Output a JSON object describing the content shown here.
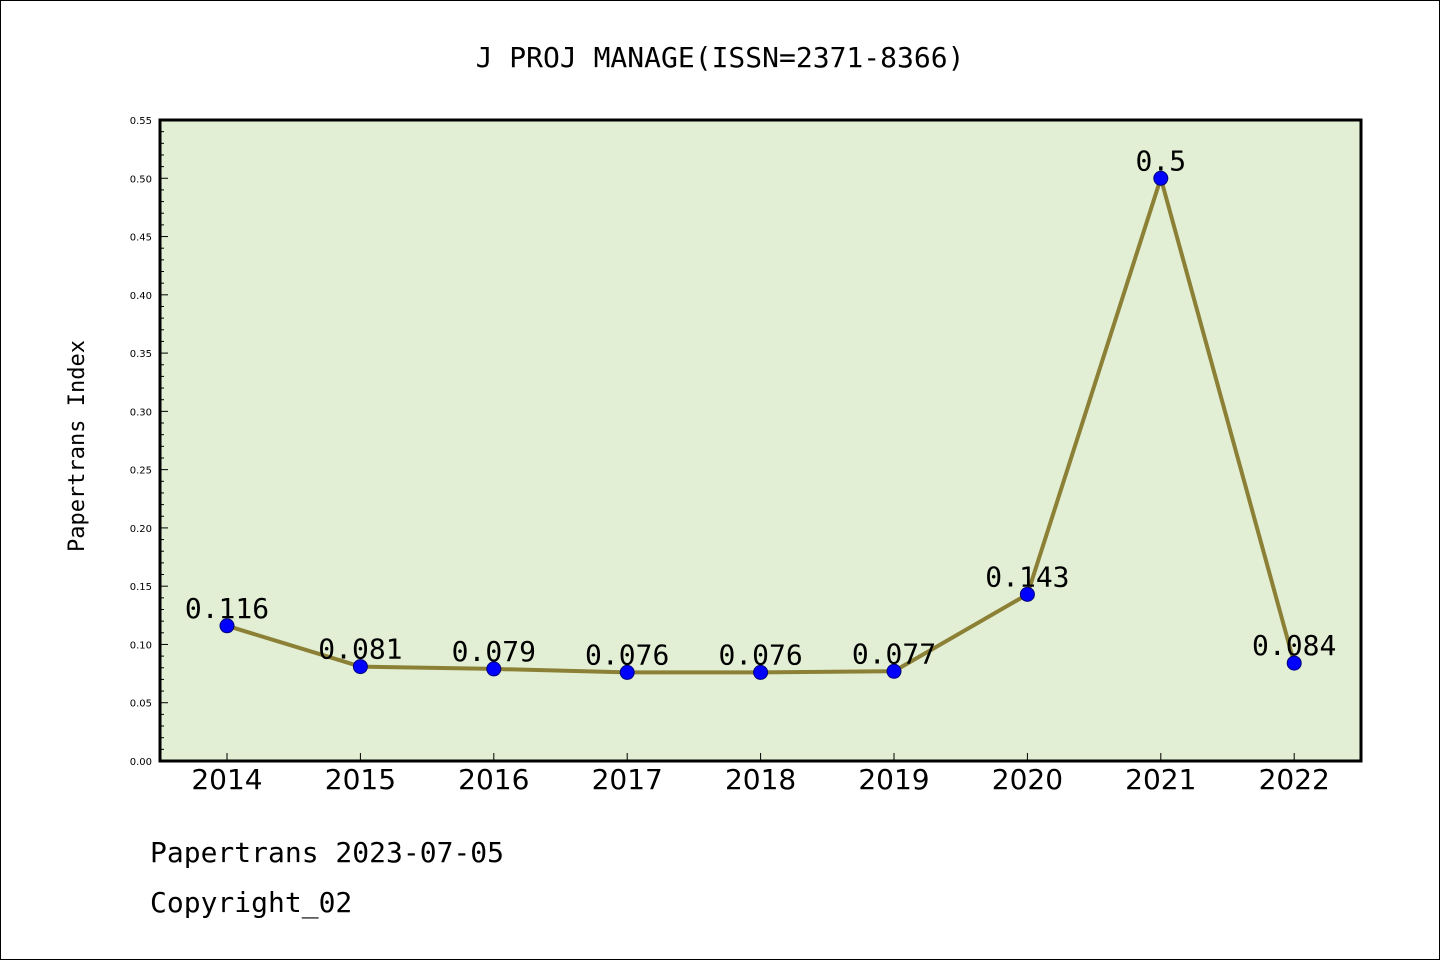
{
  "chart_data": {
    "type": "line",
    "title": "J PROJ MANAGE(ISSN=2371-8366)",
    "xlabel": "",
    "ylabel": "Papertrans Index",
    "categories": [
      "2014",
      "2015",
      "2016",
      "2017",
      "2018",
      "2019",
      "2020",
      "2021",
      "2022"
    ],
    "series": [
      {
        "values": [
          0.116,
          0.081,
          0.079,
          0.076,
          0.076,
          0.077,
          0.143,
          0.5,
          0.084
        ],
        "labels": [
          "0.116",
          "0.081",
          "0.079",
          "0.076",
          "0.076",
          "0.077",
          "0.143",
          "0.5",
          "0.084"
        ]
      }
    ],
    "ylim": [
      0,
      0.55
    ],
    "yticks": [
      "0.00",
      "0.05",
      "0.10",
      "0.15",
      "0.20",
      "0.25",
      "0.30",
      "0.35",
      "0.40",
      "0.45",
      "0.50",
      "0.55"
    ],
    "grid": false,
    "legend": "none"
  },
  "colors": {
    "plot_background": "#e2efd4",
    "line": "#8b8035",
    "marker": "#0000ff",
    "axis": "#000000"
  },
  "footer": {
    "line1": "Papertrans 2023-07-05",
    "line2": "Copyright_02"
  }
}
